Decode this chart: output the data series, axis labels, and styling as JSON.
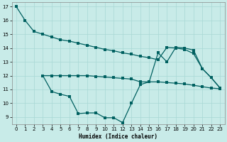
{
  "xlabel": "Humidex (Indice chaleur)",
  "bg_color": "#c8ebe8",
  "line_color": "#006060",
  "grid_color": "#a8d8d4",
  "xlim": [
    -0.5,
    23.5
  ],
  "ylim": [
    8.5,
    17.3
  ],
  "yticks": [
    9,
    10,
    11,
    12,
    13,
    14,
    15,
    16,
    17
  ],
  "xticks": [
    0,
    1,
    2,
    3,
    4,
    5,
    6,
    7,
    8,
    9,
    10,
    11,
    12,
    13,
    14,
    15,
    16,
    17,
    18,
    19,
    20,
    21,
    22,
    23
  ],
  "series1_x": [
    0,
    1,
    2,
    3,
    4,
    5,
    6,
    7,
    8,
    9,
    10,
    11,
    12,
    13,
    14,
    15,
    16,
    17,
    18,
    19,
    20,
    21,
    22,
    23
  ],
  "series1_y": [
    17,
    16,
    15.2,
    15.0,
    14.8,
    14.6,
    14.5,
    14.35,
    14.2,
    14.05,
    13.9,
    13.8,
    13.65,
    13.55,
    13.4,
    13.3,
    13.15,
    14.05,
    14.0,
    13.9,
    13.6,
    12.5,
    11.85,
    11.1
  ],
  "series2_x": [
    3,
    4,
    5,
    6,
    7,
    8,
    9,
    10,
    11,
    12,
    13,
    14,
    15,
    16,
    17,
    18,
    19,
    20,
    21,
    22,
    23
  ],
  "series2_y": [
    12.0,
    12.0,
    12.0,
    12.0,
    12.0,
    12.0,
    11.95,
    11.9,
    11.85,
    11.8,
    11.75,
    11.55,
    11.55,
    11.55,
    11.5,
    11.45,
    11.4,
    11.3,
    11.2,
    11.1,
    11.05
  ],
  "series3_x": [
    3,
    4,
    5,
    6,
    7,
    8,
    9,
    10,
    11,
    12,
    13,
    14,
    15,
    16,
    17,
    18,
    19,
    20,
    21,
    22,
    23
  ],
  "series3_y": [
    12.0,
    10.85,
    10.65,
    10.5,
    9.25,
    9.3,
    9.3,
    8.95,
    8.95,
    8.6,
    10.0,
    11.35,
    11.55,
    13.65,
    13.0,
    14.05,
    14.0,
    13.85,
    12.5,
    11.85,
    11.1
  ]
}
